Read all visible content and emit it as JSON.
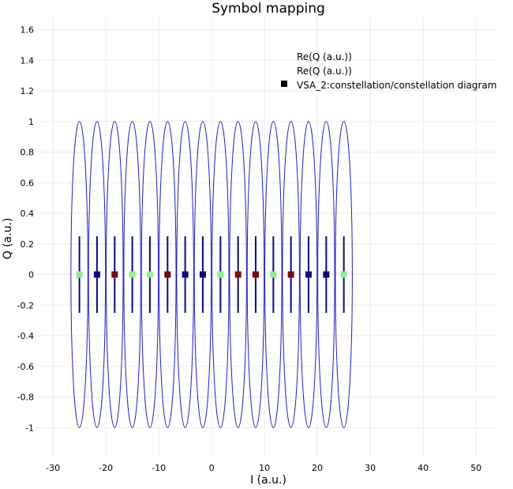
{
  "chart_data": {
    "type": "scatter",
    "title": "Symbol mapping",
    "xlabel": "I (a.u.)",
    "ylabel": "Q (a.u.)",
    "xlim": [
      -33,
      54
    ],
    "ylim": [
      -1.2,
      1.68
    ],
    "x_ticks": [
      "-30",
      "-20",
      "-10",
      "0",
      "10",
      "20",
      "30",
      "40",
      "50"
    ],
    "y_ticks": [
      "1.6",
      "1.4",
      "1.2",
      "1",
      "0.8",
      "0.6",
      "0.4",
      "0.2",
      "0",
      "-0.2",
      "-0.4",
      "-0.6",
      "-0.8",
      "-1"
    ],
    "grid": true,
    "legend_position": "top-right",
    "legend": [
      "Re(Q (a.u.))",
      "Re(Q (a.u.))",
      "VSA_2:constellation/constellation diagram"
    ],
    "colors": {
      "ellipse": "#2020c0",
      "bar": "#0a0a7a",
      "green": "#90ee90",
      "navy": "#0a0a7a",
      "maroon": "#7a0a0a",
      "grid": "#ececec"
    },
    "series": [
      {
        "name": "VSA_2:constellation/constellation diagram",
        "x": [
          -25,
          -21.67,
          -18.33,
          -15,
          -11.67,
          -8.33,
          -5,
          -1.67,
          1.67,
          5,
          8.33,
          11.67,
          15,
          18.33,
          21.67,
          25
        ],
        "y": [
          0,
          0,
          0,
          0,
          0,
          0,
          0,
          0,
          0,
          0,
          0,
          0,
          0,
          0,
          0,
          0
        ],
        "point_colors": [
          "green",
          "navy",
          "maroon",
          "green",
          "green",
          "maroon",
          "navy",
          "navy",
          "green",
          "maroon",
          "maroon",
          "green",
          "maroon",
          "navy",
          "navy",
          "green"
        ]
      }
    ],
    "ellipses": {
      "centers": [
        -25,
        -21.67,
        -18.33,
        -15,
        -11.67,
        -8.33,
        -5,
        -1.67,
        1.67,
        5,
        8.33,
        11.67,
        15,
        18.33,
        21.67,
        25
      ],
      "rx": 1.6,
      "ry": 1.0
    },
    "error_bars": {
      "centers": [
        -25,
        -21.67,
        -18.33,
        -15,
        -11.67,
        -8.33,
        -5,
        -1.67,
        1.67,
        5,
        8.33,
        11.67,
        15,
        18.33,
        21.67,
        25
      ],
      "half_height": 0.25
    }
  }
}
